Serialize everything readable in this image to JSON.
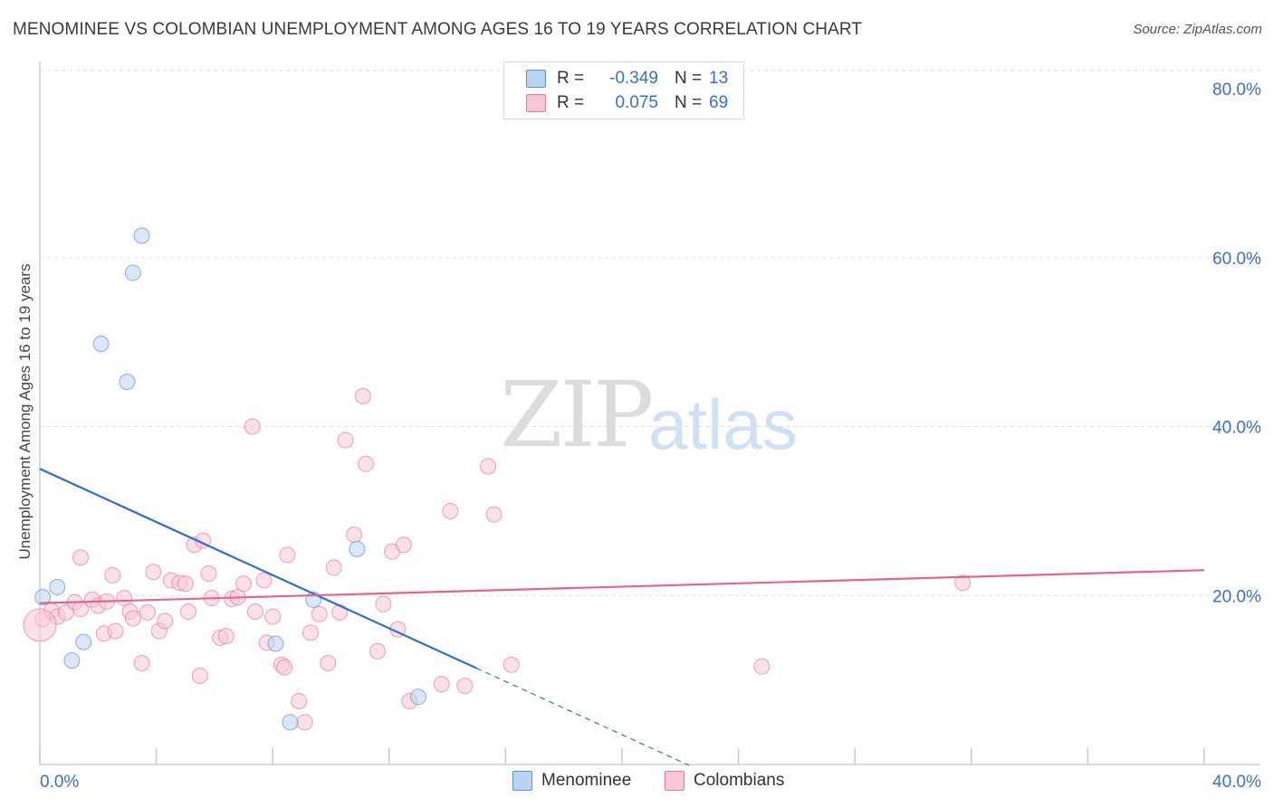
{
  "title": "MENOMINEE VS COLOMBIAN UNEMPLOYMENT AMONG AGES 16 TO 19 YEARS CORRELATION CHART",
  "source": "Source: ZipAtlas.com",
  "watermark": {
    "zip": "ZIP",
    "atlas": "atlas"
  },
  "legend": {
    "r_label": "R =",
    "n_label": "N =",
    "rows": [
      {
        "name": "Menominee",
        "r": "-0.349",
        "n": "13",
        "fill": "#b9d3f3",
        "stroke": "#5b8fd6"
      },
      {
        "name": "Colombians",
        "r": "0.075",
        "n": "69",
        "fill": "#f9c6d6",
        "stroke": "#e6799c"
      }
    ]
  },
  "chart_data": {
    "type": "scatter",
    "title": "MENOMINEE VS COLOMBIAN UNEMPLOYMENT AMONG AGES 16 TO 19 YEARS CORRELATION CHART",
    "xlabel": "",
    "ylabel": "Unemployment Among Ages 16 to 19 years",
    "xlim": [
      0,
      40
    ],
    "ylim": [
      0,
      80
    ],
    "x_tick_labels": [
      "0.0%",
      "40.0%"
    ],
    "y_tick_labels": [
      "20.0%",
      "40.0%",
      "60.0%",
      "80.0%"
    ],
    "y_ticks": [
      20,
      40,
      60,
      80
    ],
    "grid": true,
    "series": [
      {
        "name": "Menominee",
        "color": "#5b8fd6",
        "fill": "#b9d3f3",
        "points": [
          [
            0.1,
            19.8
          ],
          [
            0.6,
            21.0
          ],
          [
            1.1,
            12.3
          ],
          [
            1.5,
            14.5
          ],
          [
            2.1,
            49.8
          ],
          [
            3.0,
            45.3
          ],
          [
            3.2,
            58.2
          ],
          [
            3.5,
            62.6
          ],
          [
            8.1,
            14.3
          ],
          [
            8.6,
            5.0
          ],
          [
            9.4,
            19.5
          ],
          [
            10.9,
            25.5
          ],
          [
            13.0,
            8.0
          ]
        ],
        "trend": {
          "x0": 0,
          "y0": 35.0,
          "x1": 15.0,
          "y1": 11.4,
          "dash_to_x": 22.3,
          "dash_to_y": -0.1
        }
      },
      {
        "name": "Colombians",
        "color": "#e6799c",
        "fill": "#f9c6d6",
        "points": [
          [
            0.1,
            17.2
          ],
          [
            0.4,
            18.2
          ],
          [
            0.6,
            17.5
          ],
          [
            0.9,
            18.0
          ],
          [
            1.2,
            19.2
          ],
          [
            1.4,
            18.4
          ],
          [
            1.4,
            24.5
          ],
          [
            1.8,
            19.5
          ],
          [
            2.0,
            18.8
          ],
          [
            2.2,
            15.5
          ],
          [
            2.3,
            19.3
          ],
          [
            2.5,
            22.4
          ],
          [
            2.6,
            15.8
          ],
          [
            2.9,
            19.7
          ],
          [
            3.1,
            18.1
          ],
          [
            3.2,
            17.3
          ],
          [
            3.5,
            12.0
          ],
          [
            3.7,
            18.0
          ],
          [
            3.9,
            22.8
          ],
          [
            4.1,
            15.8
          ],
          [
            4.3,
            17.0
          ],
          [
            4.5,
            21.8
          ],
          [
            4.8,
            21.5
          ],
          [
            5.0,
            21.4
          ],
          [
            5.1,
            18.1
          ],
          [
            5.3,
            26.0
          ],
          [
            5.5,
            10.5
          ],
          [
            5.6,
            26.5
          ],
          [
            5.8,
            22.6
          ],
          [
            5.9,
            19.7
          ],
          [
            6.2,
            15.0
          ],
          [
            6.4,
            15.2
          ],
          [
            6.6,
            19.6
          ],
          [
            6.8,
            19.8
          ],
          [
            7.0,
            21.4
          ],
          [
            7.3,
            40.0
          ],
          [
            7.4,
            18.1
          ],
          [
            7.7,
            21.8
          ],
          [
            7.8,
            14.4
          ],
          [
            8.0,
            17.5
          ],
          [
            8.3,
            11.8
          ],
          [
            8.4,
            11.5
          ],
          [
            8.5,
            24.8
          ],
          [
            8.9,
            7.5
          ],
          [
            9.1,
            5.0
          ],
          [
            9.3,
            15.6
          ],
          [
            9.6,
            17.8
          ],
          [
            9.9,
            12.0
          ],
          [
            10.1,
            23.3
          ],
          [
            10.3,
            18.0
          ],
          [
            10.5,
            38.4
          ],
          [
            10.8,
            27.2
          ],
          [
            11.1,
            43.6
          ],
          [
            11.2,
            35.6
          ],
          [
            11.6,
            13.4
          ],
          [
            11.8,
            19.0
          ],
          [
            12.1,
            25.2
          ],
          [
            12.3,
            16.0
          ],
          [
            12.5,
            26.0
          ],
          [
            12.7,
            7.5
          ],
          [
            13.8,
            9.5
          ],
          [
            14.1,
            30.0
          ],
          [
            14.6,
            9.3
          ],
          [
            15.4,
            35.3
          ],
          [
            15.6,
            29.6
          ],
          [
            16.2,
            11.8
          ],
          [
            24.8,
            11.6
          ],
          [
            31.7,
            21.5
          ],
          [
            0.0,
            16.5
          ]
        ],
        "trend": {
          "x0": 0,
          "y0": 19.1,
          "x1": 40,
          "y1": 23.0
        }
      }
    ]
  }
}
